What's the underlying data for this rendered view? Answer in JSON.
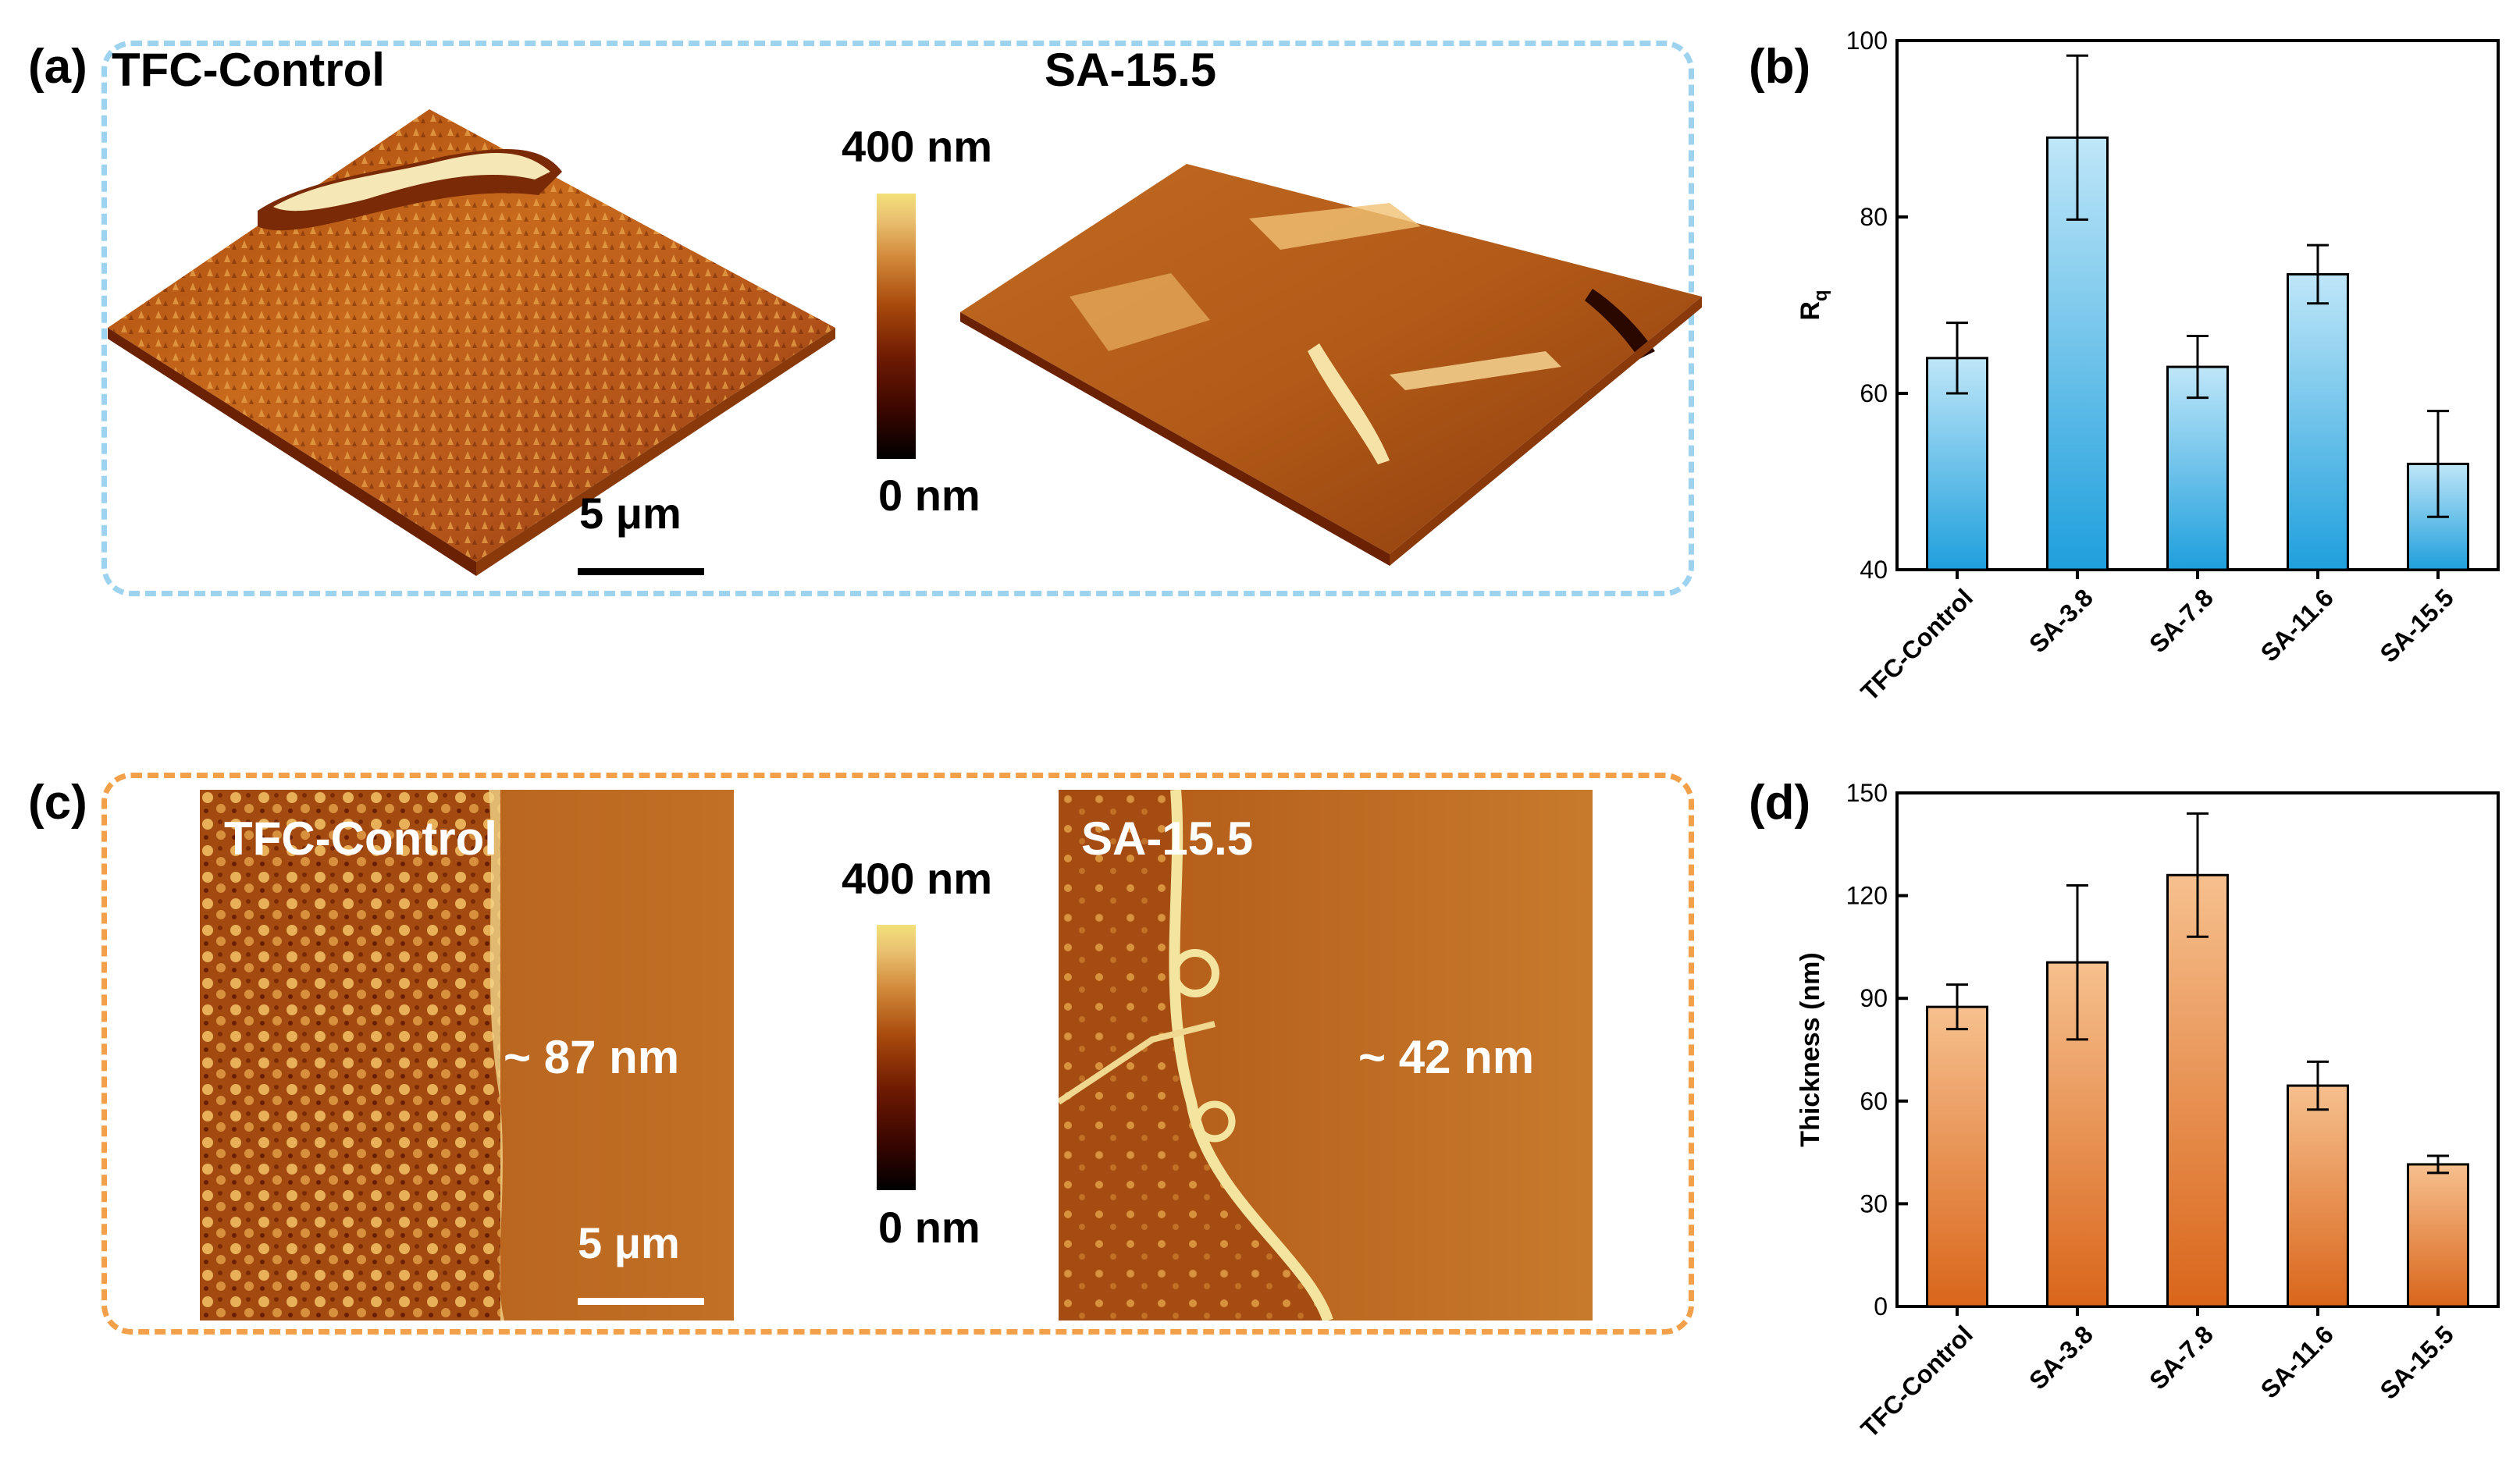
{
  "panel_a": {
    "letter": "(a)",
    "left_label": "TFC-Control",
    "right_label": "SA-15.5",
    "scale_bar": "5 μm",
    "colorbar_max": "400 nm",
    "colorbar_min": "0 nm"
  },
  "panel_c": {
    "letter": "(c)",
    "left_label": "TFC-Control",
    "right_label": "SA-15.5",
    "left_thickness": "~ 87 nm",
    "right_thickness": "~ 42 nm",
    "scale_bar": "5 μm",
    "colorbar_max": "400 nm",
    "colorbar_min": "0 nm"
  },
  "panel_b_letter": "(b)",
  "panel_d_letter": "(d)",
  "colors": {
    "blue_box": "#9dd3ef",
    "orange_box": "#f2a04a",
    "blue_bar_top": "#bfe6f8",
    "blue_bar_bottom": "#1e9fdc",
    "orange_bar_top": "#f6c08e",
    "orange_bar_bottom": "#d9651a"
  },
  "chart_data": [
    {
      "type": "bar",
      "categories": [
        "TFC-Control",
        "SA-3.8",
        "SA-7.8",
        "SA-11.6",
        "SA-15.5"
      ],
      "values": [
        64,
        89,
        63,
        73.5,
        52
      ],
      "errors": [
        4,
        9.3,
        3.5,
        3.3,
        6
      ],
      "ylabel": "R",
      "ylabel_sub": "q",
      "ylim": [
        40,
        100
      ],
      "yticks": [
        40,
        60,
        80,
        100
      ],
      "grid": false
    },
    {
      "type": "bar",
      "categories": [
        "TFC-Control",
        "SA-3.8",
        "SA-7.8",
        "SA-11.6",
        "SA-15.5"
      ],
      "values": [
        87.5,
        100.5,
        126,
        64.5,
        41.5
      ],
      "errors": [
        6.5,
        22.5,
        18,
        7,
        2.5
      ],
      "ylabel": "Thickness (nm)",
      "ylim": [
        0,
        150
      ],
      "yticks": [
        0,
        30,
        60,
        90,
        120,
        150
      ],
      "grid": false
    }
  ]
}
